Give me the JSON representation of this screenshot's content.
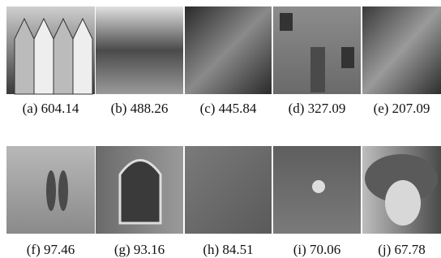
{
  "figures": [
    {
      "caption": "(a) 604.14"
    },
    {
      "caption": "(b) 488.26"
    },
    {
      "caption": "(c) 445.84"
    },
    {
      "caption": "(d) 327.09"
    },
    {
      "caption": "(e) 207.09"
    },
    {
      "caption": "(f) 97.46"
    },
    {
      "caption": "(g) 93.16"
    },
    {
      "caption": "(h) 84.51"
    },
    {
      "caption": "(i) 70.06"
    },
    {
      "caption": "(j) 67.78"
    }
  ]
}
